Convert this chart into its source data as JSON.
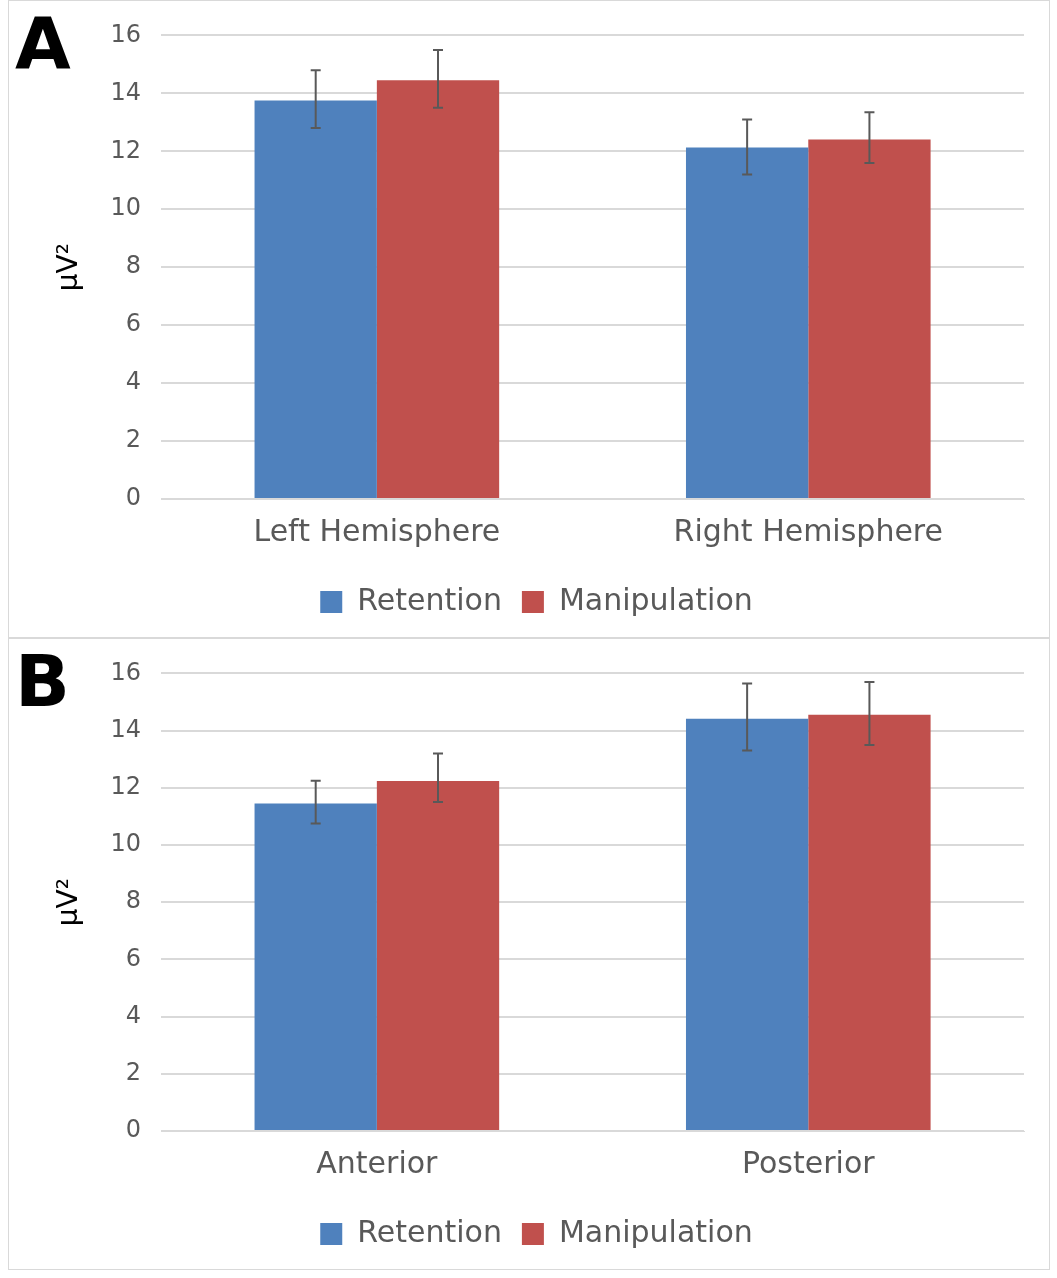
{
  "chart_data": [
    {
      "type": "bar",
      "title": "A",
      "ylabel": "μV²",
      "categories": [
        "Left Hemisphere",
        "Right Hemisphere"
      ],
      "series": [
        {
          "name": "Retention",
          "color": "#4f81bd",
          "values": [
            13.75,
            12.13
          ],
          "errors": [
            [
              12.8,
              14.8
            ],
            [
              11.2,
              13.1
            ]
          ]
        },
        {
          "name": "Manipulation",
          "color": "#c0504d",
          "values": [
            14.45,
            12.41
          ],
          "errors": [
            [
              13.5,
              15.5
            ],
            [
              11.6,
              13.35
            ]
          ]
        }
      ],
      "ylim": [
        0,
        16
      ],
      "yticks": [
        0,
        2,
        4,
        6,
        8,
        10,
        12,
        14,
        16
      ],
      "grid": "y",
      "legend": "bottom"
    },
    {
      "type": "bar",
      "title": "B",
      "ylabel": "μV²",
      "categories": [
        "Anterior",
        "Posterior"
      ],
      "series": [
        {
          "name": "Retention",
          "color": "#4f81bd",
          "values": [
            11.45,
            14.41
          ],
          "errors": [
            [
              10.75,
              12.25
            ],
            [
              13.3,
              15.65
            ]
          ]
        },
        {
          "name": "Manipulation",
          "color": "#c0504d",
          "values": [
            12.24,
            14.55
          ],
          "errors": [
            [
              11.5,
              13.2
            ],
            [
              13.5,
              15.7
            ]
          ]
        }
      ],
      "ylim": [
        0,
        16
      ],
      "yticks": [
        0,
        2,
        4,
        6,
        8,
        10,
        12,
        14,
        16
      ],
      "grid": "y",
      "legend": "bottom"
    }
  ]
}
